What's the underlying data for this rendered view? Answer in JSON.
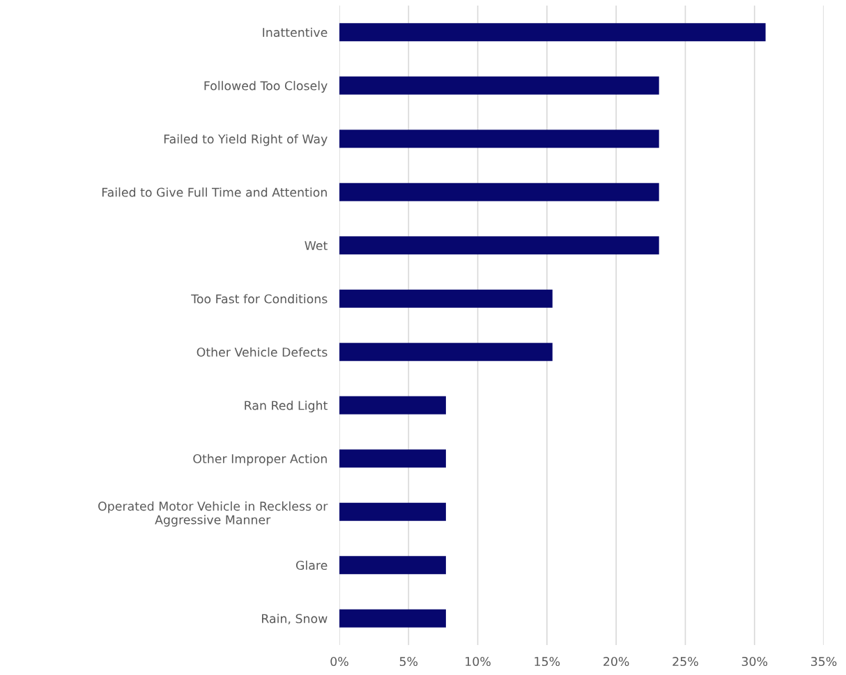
{
  "chart_data": {
    "type": "bar",
    "orientation": "horizontal",
    "categories": [
      "Inattentive",
      "Followed Too Closely",
      "Failed to Yield Right of Way",
      "Failed to Give Full Time and Attention",
      "Wet",
      "Too Fast for Conditions",
      "Other Vehicle Defects",
      "Ran Red Light",
      "Other Improper Action",
      "Operated Motor Vehicle in Reckless or\nAggressive Manner",
      "Glare",
      "Rain, Snow"
    ],
    "values": [
      30.8,
      23.1,
      23.1,
      23.1,
      23.1,
      15.4,
      15.4,
      7.7,
      7.7,
      7.7,
      7.7,
      7.7
    ],
    "color": "#07076e",
    "xlim": [
      0,
      35
    ],
    "xticks": [
      {
        "value": 0,
        "label": "0%"
      },
      {
        "value": 5,
        "label": "5%"
      },
      {
        "value": 10,
        "label": "10%"
      },
      {
        "value": 15,
        "label": "15%"
      },
      {
        "value": 20,
        "label": "20%"
      },
      {
        "value": 25,
        "label": "25%"
      },
      {
        "value": 30,
        "label": "30%"
      },
      {
        "value": 35,
        "label": "35%"
      }
    ],
    "grid": "x"
  }
}
